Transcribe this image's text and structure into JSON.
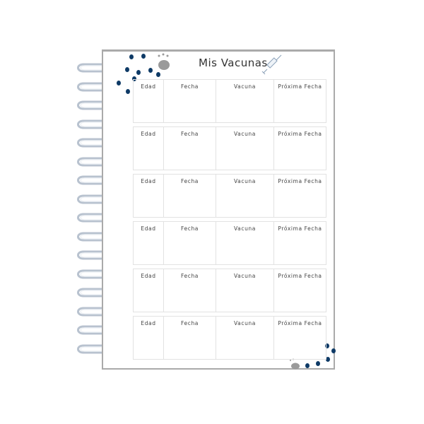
{
  "title": "Mis Vacunas",
  "columns": [
    "Edad",
    "Fecha",
    "Vacuna",
    "Próxima Fecha"
  ],
  "block_count": 6,
  "colors": {
    "dots": "#0e3a66",
    "paw": "#9a9a9a",
    "border": "#aaaaaa"
  },
  "icons": [
    "syringe-icon",
    "paw-print-icon",
    "spiral-binding"
  ]
}
